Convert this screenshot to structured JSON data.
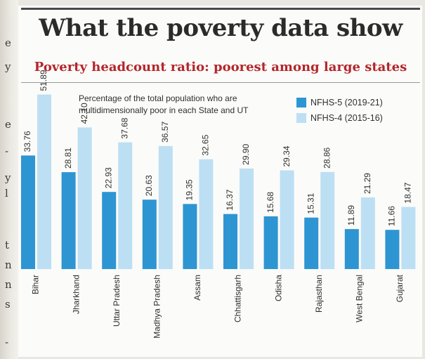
{
  "title": "What the poverty data show",
  "subtitle": "Poverty headcount ratio: poorest among large states",
  "caption": "Percentage of the total population who are multidimensionally poor in each State and UT",
  "colors": {
    "nfhs5": "#2e95d3",
    "nfhs4": "#bddff4",
    "title": "#2b2b2b",
    "subtitle": "#b3262b"
  },
  "edge_text": [
    "e",
    "y",
    "e",
    "-",
    "y",
    "l",
    "t",
    "n",
    "n",
    "s",
    "-"
  ],
  "chart_data": {
    "type": "bar",
    "categories": [
      "Bihar",
      "Jharkhand",
      "Uttar Pradesh",
      "Madhya Pradesh",
      "Assam",
      "Chhattisgarh",
      "Odisha",
      "Rajasthan",
      "West Bengal",
      "Gujarat"
    ],
    "series": [
      {
        "name": "NFHS-5 (2019-21)",
        "values": [
          33.76,
          28.81,
          22.93,
          20.63,
          19.35,
          16.37,
          15.68,
          15.31,
          11.89,
          11.66
        ]
      },
      {
        "name": "NFHS-4 (2015-16)",
        "values": [
          51.89,
          42.1,
          37.68,
          36.57,
          32.65,
          29.9,
          29.34,
          28.86,
          21.29,
          18.47
        ]
      }
    ],
    "value_labels": [
      [
        "33.76",
        "28.81",
        "22.93",
        "20.63",
        "19.35",
        "16.37",
        "15.68",
        "15.31",
        "11.89",
        "11.66"
      ],
      [
        "51.89",
        "42.10",
        "37.68",
        "36.57",
        "32.65",
        "29.90",
        "29.34",
        "28.86",
        "21.29",
        "18.47"
      ]
    ],
    "ylim": [
      0,
      52
    ],
    "legend": "top-right",
    "grid": false
  }
}
